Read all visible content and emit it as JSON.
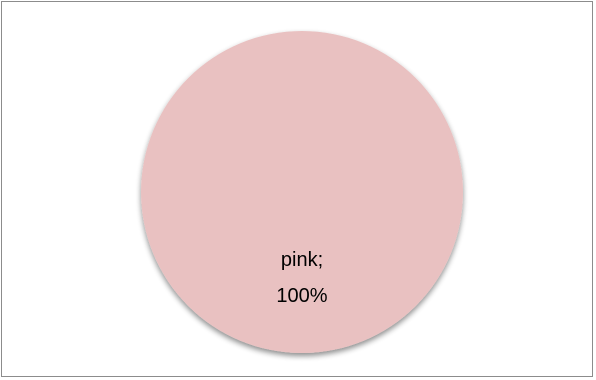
{
  "chart_data": {
    "type": "pie",
    "title": "",
    "slices": [
      {
        "label": "pink",
        "value": 100,
        "percent_label": "100%",
        "label_line1": "pink;",
        "label_line2": "100%",
        "color": "#e9c1c1"
      }
    ],
    "legend": "none",
    "shadow_color": "#b0b0b0"
  }
}
